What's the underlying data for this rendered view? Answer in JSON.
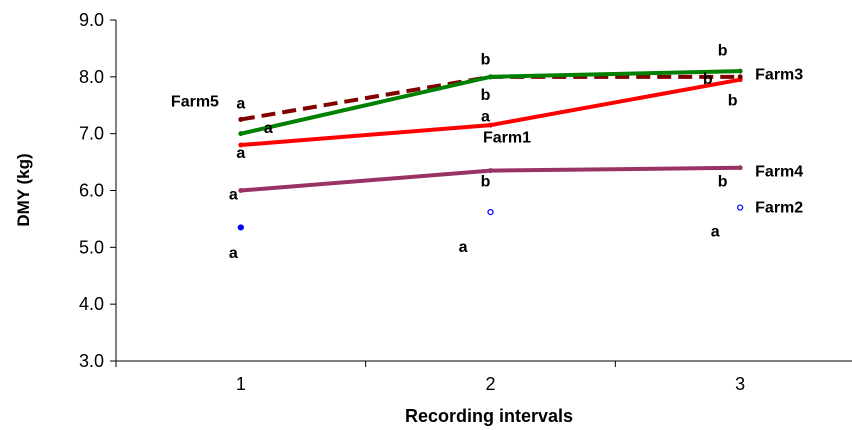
{
  "chart_data": {
    "type": "line",
    "xlabel": "Recording intervals",
    "ylabel": "DMY (kg)",
    "x": [
      1,
      2,
      3
    ],
    "xticks": [
      "1",
      "2",
      "3"
    ],
    "ylim": [
      3.0,
      9.0
    ],
    "yticks": [
      "3.0",
      "4.0",
      "5.0",
      "6.0",
      "7.0",
      "8.0",
      "9.0"
    ],
    "grid": false,
    "series": [
      {
        "name": "Farm1",
        "values": [
          6.8,
          7.15,
          7.95
        ],
        "color": "#ff0000",
        "style": "solid"
      },
      {
        "name": "Farm2",
        "values": [
          5.35,
          5.62,
          5.7
        ],
        "color": "#0000ff",
        "style": "markers"
      },
      {
        "name": "Farm3",
        "values": [
          7.0,
          8.0,
          8.1
        ],
        "color": "#008000",
        "style": "solid"
      },
      {
        "name": "Farm4",
        "values": [
          6.0,
          6.35,
          6.4
        ],
        "color": "#993366",
        "style": "solid"
      },
      {
        "name": "Farm5",
        "values": [
          7.25,
          8.0,
          8.0
        ],
        "color": "#800000",
        "style": "dashed"
      }
    ],
    "annotations": [
      {
        "text": "a",
        "x": 1.0,
        "y": 7.55
      },
      {
        "text": "a",
        "x": 1.11,
        "y": 7.12
      },
      {
        "text": "a",
        "x": 1.0,
        "y": 6.68
      },
      {
        "text": "a",
        "x": 0.97,
        "y": 5.95
      },
      {
        "text": "a",
        "x": 0.97,
        "y": 4.92
      },
      {
        "text": "b",
        "x": 1.98,
        "y": 8.32
      },
      {
        "text": "b",
        "x": 1.98,
        "y": 7.7
      },
      {
        "text": "a",
        "x": 1.98,
        "y": 7.32
      },
      {
        "text": "b",
        "x": 1.98,
        "y": 6.18
      },
      {
        "text": "a",
        "x": 1.89,
        "y": 5.02
      },
      {
        "text": "b",
        "x": 2.93,
        "y": 8.48
      },
      {
        "text": "b",
        "x": 2.87,
        "y": 7.98
      },
      {
        "text": "b",
        "x": 2.97,
        "y": 7.6
      },
      {
        "text": "b",
        "x": 2.93,
        "y": 6.18
      },
      {
        "text": "a",
        "x": 2.9,
        "y": 5.3
      }
    ],
    "series_labels": [
      {
        "text": "Farm5",
        "x": 0.72,
        "y": 7.58
      },
      {
        "text": "Farm1",
        "x": 1.97,
        "y": 6.95
      },
      {
        "text": "Farm3",
        "x": 3.06,
        "y": 8.06
      },
      {
        "text": "Farm4",
        "x": 3.06,
        "y": 6.35
      },
      {
        "text": "Farm2",
        "x": 3.06,
        "y": 5.72
      }
    ]
  }
}
